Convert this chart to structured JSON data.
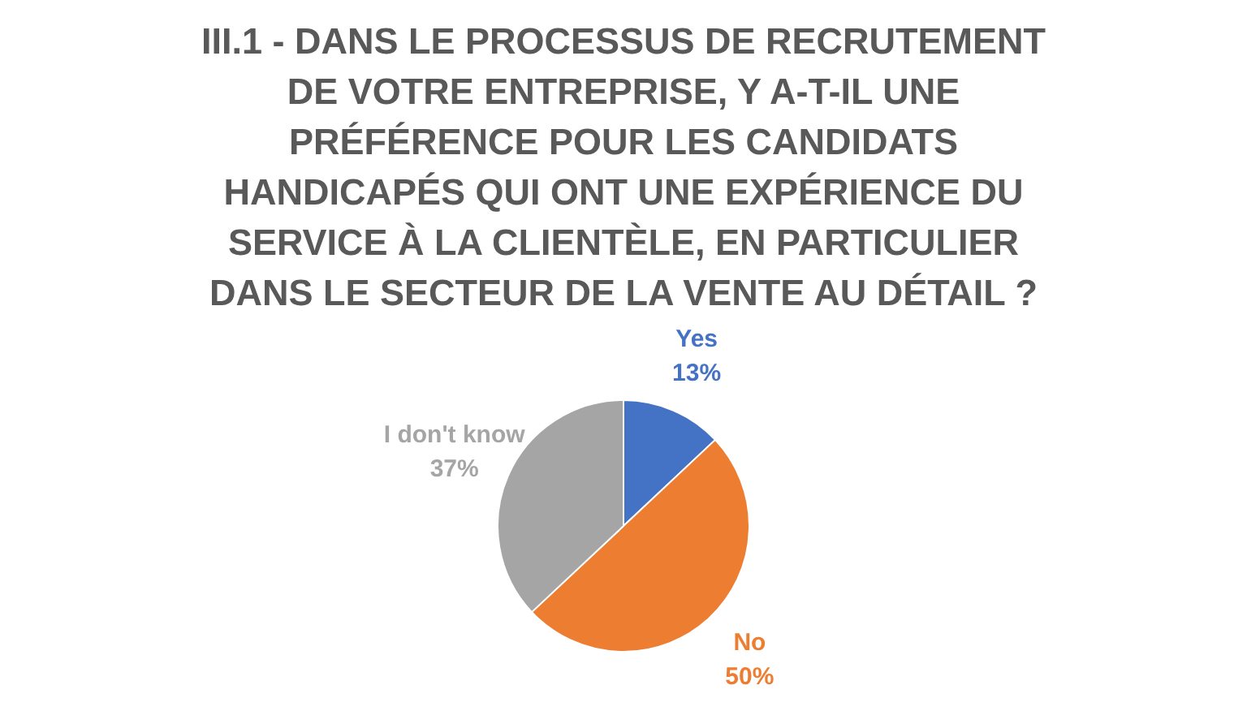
{
  "chart_data": {
    "type": "pie",
    "title": "III.1 - DANS LE PROCESSUS DE RECRUTEMENT DE VOTRE ENTREPRISE, Y A-T-IL UNE PRÉFÉRENCE POUR LES CANDIDATS HANDICAPÉS QUI ONT UNE EXPÉRIENCE DU SERVICE À LA CLIENTÈLE, EN PARTICULIER DANS LE SECTEUR DE LA VENTE AU DÉTAIL ?",
    "categories": [
      "Yes",
      "No",
      "I don't know"
    ],
    "values": [
      13,
      50,
      37
    ],
    "value_labels": [
      "13%",
      "50%",
      "37%"
    ],
    "colors": [
      "#4472c4",
      "#ed7d31",
      "#a5a5a5"
    ],
    "legend": false
  }
}
